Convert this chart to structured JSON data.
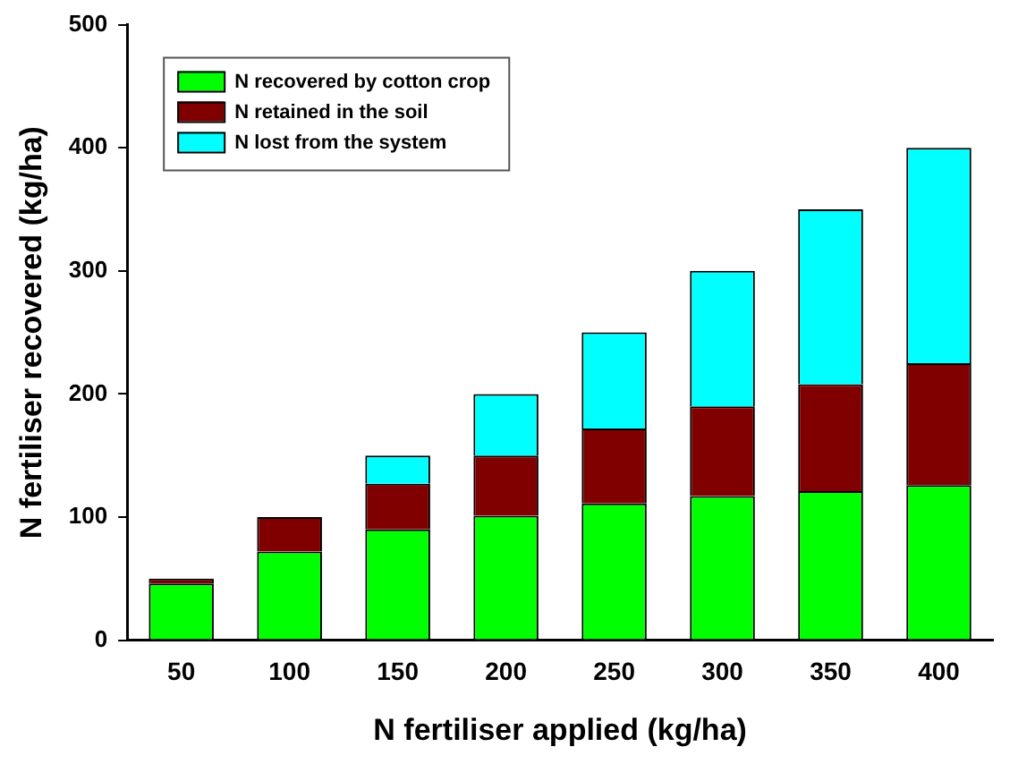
{
  "chart_data": {
    "type": "bar",
    "stacked": true,
    "xlabel": "N fertiliser applied (kg/ha)",
    "ylabel": "N fertiliser recovered (kg/ha)",
    "categories": [
      "50",
      "100",
      "150",
      "200",
      "250",
      "300",
      "350",
      "400"
    ],
    "series": [
      {
        "name": "N recovered by cotton crop",
        "color": "#00ff00",
        "values": [
          46,
          72,
          90,
          101,
          111,
          117,
          121,
          126
        ]
      },
      {
        "name": "N retained in the soil",
        "color": "#800000",
        "values": [
          4,
          28,
          37,
          49,
          61,
          73,
          87,
          99
        ]
      },
      {
        "name": "N lost from the system",
        "color": "#00ffff",
        "values": [
          0,
          0,
          23,
          50,
          78,
          110,
          142,
          175
        ]
      }
    ],
    "ylim": [
      0,
      500
    ],
    "yticks": [
      0,
      100,
      200,
      300,
      400,
      500
    ],
    "grid": false,
    "legend": "top left"
  }
}
